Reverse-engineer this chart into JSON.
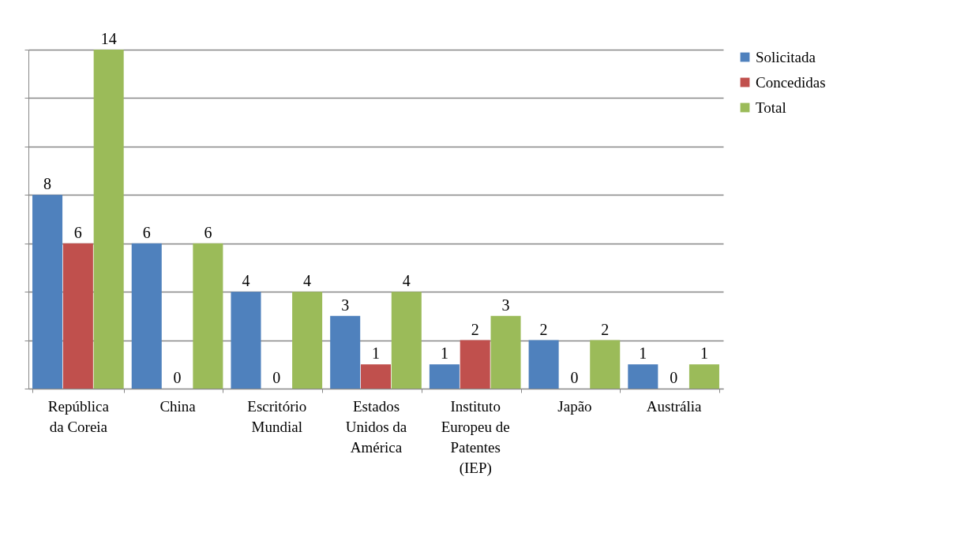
{
  "chart_data": {
    "type": "bar",
    "categories": [
      "República da Coreia",
      "China",
      "Escritório Mundial",
      "Estados Unidos da América",
      "Instituto Europeu de Patentes (IEP)",
      "Japão",
      "Austrália"
    ],
    "series": [
      {
        "name": "Solicitada",
        "color": "#4f81bd",
        "values": [
          8,
          6,
          4,
          3,
          1,
          2,
          1
        ]
      },
      {
        "name": "Concedidas",
        "color": "#c0504d",
        "values": [
          6,
          0,
          0,
          1,
          2,
          0,
          0
        ]
      },
      {
        "name": "Total",
        "color": "#9bbb59",
        "values": [
          14,
          6,
          4,
          4,
          3,
          2,
          1
        ]
      }
    ],
    "ylim": [
      0,
      14
    ],
    "yticks": [
      {
        "value": 0,
        "label": null
      },
      {
        "value": 2,
        "label": null
      },
      {
        "value": 4,
        "label": null
      },
      {
        "value": 6,
        "label": null
      },
      {
        "value": 8,
        "label": null
      },
      {
        "value": 10,
        "label": null
      },
      {
        "value": 12,
        "label": null
      },
      {
        "value": 14,
        "label": null
      }
    ],
    "grid": "y",
    "tick_labels": "x",
    "legend": "right",
    "data_labels": true
  }
}
